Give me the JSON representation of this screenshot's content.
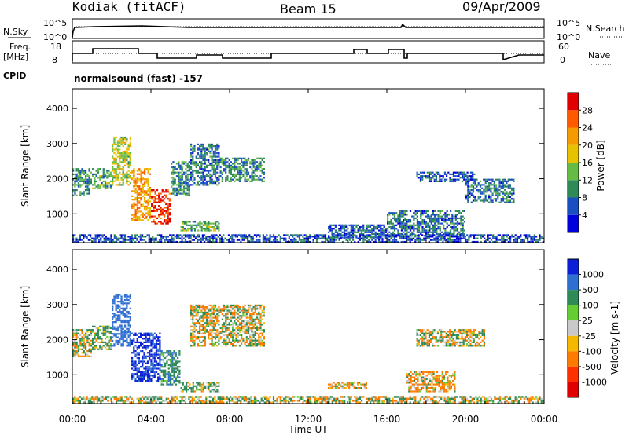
{
  "header": {
    "station": "Kodiak (fitACF)",
    "beam": "Beam 15",
    "date": "09/Apr/2009"
  },
  "top_panels": {
    "nsky_label": "N.Sky",
    "nsky_ticks": [
      "10^5",
      "10^0"
    ],
    "nsearch_label": "N.Search",
    "nsearch_ticks": [
      "10^5",
      "10^0"
    ],
    "freq_label_line1": "Freq.",
    "freq_label_line2": "[MHz]",
    "freq_ticks": [
      "18",
      "8"
    ],
    "nave_label": "Nave",
    "nave_ticks": [
      "60",
      "0"
    ],
    "cpid_label": "CPID",
    "cpid_value": "normalsound (fast) -157"
  },
  "chart_data": [
    {
      "type": "heatmap",
      "title": "",
      "xlabel": "Time UT",
      "ylabel": "Slant Range [km]",
      "x_range_hours": [
        0,
        24
      ],
      "x_ticks": [
        "00:00",
        "04:00",
        "08:00",
        "12:00",
        "16:00",
        "20:00",
        "00:00"
      ],
      "ylim": [
        180,
        4560
      ],
      "y_ticks": [
        "1000",
        "2000",
        "3000",
        "4000"
      ],
      "colorbar": {
        "label": "Power [dB]",
        "range": [
          0,
          32
        ],
        "ticks": [
          "4",
          "8",
          "12",
          "16",
          "20",
          "24",
          "28"
        ],
        "colors": [
          "#0000dd",
          "#1a4fc2",
          "#2e8b57",
          "#66bb44",
          "#e6c200",
          "#f59a00",
          "#ff5a00",
          "#e00000"
        ]
      },
      "regions": [
        {
          "t0": 0.0,
          "t1": 1.0,
          "r0": 1500,
          "r1": 2300,
          "value": 10
        },
        {
          "t0": 1.0,
          "t1": 2.0,
          "r0": 1700,
          "r1": 2300,
          "value": 12
        },
        {
          "t0": 2.0,
          "t1": 3.0,
          "r0": 1800,
          "r1": 3200,
          "value": 16
        },
        {
          "t0": 3.0,
          "t1": 4.0,
          "r0": 800,
          "r1": 2300,
          "value": 22
        },
        {
          "t0": 4.0,
          "t1": 5.0,
          "r0": 700,
          "r1": 1700,
          "value": 28
        },
        {
          "t0": 5.0,
          "t1": 6.0,
          "r0": 1500,
          "r1": 2500,
          "value": 10
        },
        {
          "t0": 6.0,
          "t1": 7.5,
          "r0": 1800,
          "r1": 3000,
          "value": 8
        },
        {
          "t0": 7.5,
          "t1": 9.8,
          "r0": 1900,
          "r1": 2600,
          "value": 10
        },
        {
          "t0": 5.5,
          "t1": 7.5,
          "r0": 500,
          "r1": 800,
          "value": 12
        },
        {
          "t0": 13.0,
          "t1": 16.0,
          "r0": 300,
          "r1": 700,
          "value": 6
        },
        {
          "t0": 16.0,
          "t1": 20.0,
          "r0": 350,
          "r1": 1100,
          "value": 8
        },
        {
          "t0": 17.5,
          "t1": 20.5,
          "r0": 1900,
          "r1": 2200,
          "value": 6
        },
        {
          "t0": 20.0,
          "t1": 22.5,
          "r0": 1300,
          "r1": 2000,
          "value": 8
        },
        {
          "t0": 0.0,
          "t1": 24.0,
          "r0": 180,
          "r1": 420,
          "value": 6
        }
      ]
    },
    {
      "type": "heatmap",
      "title": "",
      "xlabel": "Time UT",
      "ylabel": "Slant Range [km]",
      "x_range_hours": [
        0,
        24
      ],
      "x_ticks": [
        "00:00",
        "04:00",
        "08:00",
        "12:00",
        "16:00",
        "20:00",
        "00:00"
      ],
      "ylim": [
        180,
        4560
      ],
      "y_ticks": [
        "1000",
        "2000",
        "3000",
        "4000"
      ],
      "colorbar": {
        "label": "Velocity [m s-1]",
        "ticks": [
          "1000",
          "500",
          "100",
          "25",
          "-25",
          "-100",
          "-500",
          "-1000"
        ],
        "colors": [
          "#0a1fd6",
          "#2f6fd0",
          "#2e8b57",
          "#66cc33",
          "#c8c8c8",
          "#f5b800",
          "#ff7a00",
          "#ff3000",
          "#e00000"
        ]
      },
      "regions": [
        {
          "t0": 0.0,
          "t1": 1.0,
          "r0": 1500,
          "r1": 2300,
          "value": 0
        },
        {
          "t0": 1.0,
          "t1": 2.0,
          "r0": 1700,
          "r1": 2400,
          "value": 100
        },
        {
          "t0": 2.0,
          "t1": 3.0,
          "r0": 1800,
          "r1": 3300,
          "value": 500
        },
        {
          "t0": 3.0,
          "t1": 4.5,
          "r0": 800,
          "r1": 2200,
          "value": 800
        },
        {
          "t0": 4.5,
          "t1": 5.5,
          "r0": 700,
          "r1": 1700,
          "value": 200
        },
        {
          "t0": 5.5,
          "t1": 7.5,
          "r0": 500,
          "r1": 800,
          "value": 100
        },
        {
          "t0": 6.0,
          "t1": 9.8,
          "r0": 1800,
          "r1": 3000,
          "value": 0
        },
        {
          "t0": 13.0,
          "t1": 15.0,
          "r0": 600,
          "r1": 800,
          "value": -100
        },
        {
          "t0": 17.0,
          "t1": 19.5,
          "r0": 500,
          "r1": 1100,
          "value": -100
        },
        {
          "t0": 17.5,
          "t1": 21.0,
          "r0": 1800,
          "r1": 2300,
          "value": 0
        },
        {
          "t0": 0.0,
          "t1": 24.0,
          "r0": 180,
          "r1": 400,
          "value": 0
        }
      ]
    }
  ]
}
